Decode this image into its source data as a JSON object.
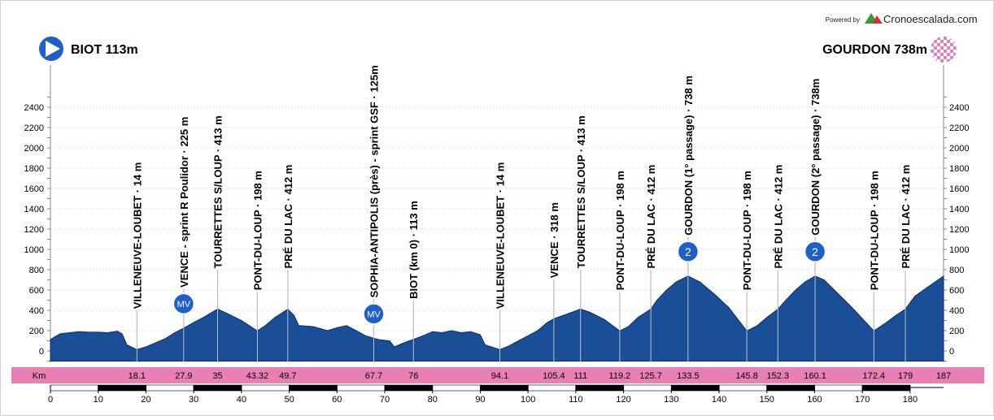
{
  "header": {
    "powered_by": "Powered by",
    "brand": "Cronoescalada.com"
  },
  "start": {
    "label": "BIOT 113m"
  },
  "finish": {
    "label": "GOURDON 738m"
  },
  "km_label": "Km",
  "colors": {
    "profile_fill": "#1a4e96",
    "profile_stroke": "#0c2f66",
    "km_band": "#e87fb5",
    "start_icon": "#1e5fc8",
    "climb_badge": "#1e5fc8"
  },
  "chart_data": {
    "type": "area",
    "xlabel": "Km",
    "ylabel": "",
    "xlim": [
      0,
      187
    ],
    "ylim": [
      -100,
      2500
    ],
    "y_ticks": [
      0,
      200,
      400,
      600,
      800,
      1000,
      1200,
      1400,
      1600,
      1800,
      2000,
      2200,
      2400
    ],
    "x_ticks": [
      0,
      10,
      20,
      30,
      40,
      50,
      60,
      70,
      80,
      90,
      100,
      110,
      120,
      130,
      140,
      150,
      160,
      170,
      180
    ],
    "profile": [
      [
        0,
        113
      ],
      [
        2,
        170
      ],
      [
        4,
        180
      ],
      [
        6,
        190
      ],
      [
        8,
        185
      ],
      [
        10,
        185
      ],
      [
        12,
        180
      ],
      [
        14,
        195
      ],
      [
        15,
        170
      ],
      [
        16,
        60
      ],
      [
        18.1,
        14
      ],
      [
        20,
        40
      ],
      [
        22,
        80
      ],
      [
        24,
        120
      ],
      [
        26,
        180
      ],
      [
        27.9,
        225
      ],
      [
        30,
        280
      ],
      [
        32,
        330
      ],
      [
        35,
        413
      ],
      [
        37,
        370
      ],
      [
        40,
        300
      ],
      [
        43.32,
        198
      ],
      [
        45,
        250
      ],
      [
        47,
        330
      ],
      [
        49.7,
        412
      ],
      [
        51,
        350
      ],
      [
        52,
        250
      ],
      [
        55,
        240
      ],
      [
        58,
        200
      ],
      [
        60,
        230
      ],
      [
        62,
        250
      ],
      [
        64,
        200
      ],
      [
        66,
        150
      ],
      [
        67.7,
        125
      ],
      [
        69,
        110
      ],
      [
        71,
        100
      ],
      [
        72,
        40
      ],
      [
        74,
        80
      ],
      [
        76,
        113
      ],
      [
        78,
        150
      ],
      [
        80,
        190
      ],
      [
        82,
        180
      ],
      [
        84,
        200
      ],
      [
        86,
        180
      ],
      [
        88,
        190
      ],
      [
        90,
        160
      ],
      [
        91,
        60
      ],
      [
        94.1,
        14
      ],
      [
        96,
        50
      ],
      [
        98,
        100
      ],
      [
        100,
        150
      ],
      [
        102,
        200
      ],
      [
        104,
        280
      ],
      [
        105.4,
        318
      ],
      [
        108,
        360
      ],
      [
        111,
        413
      ],
      [
        113,
        380
      ],
      [
        116,
        310
      ],
      [
        119.2,
        198
      ],
      [
        121,
        240
      ],
      [
        123,
        330
      ],
      [
        125.7,
        412
      ],
      [
        127,
        500
      ],
      [
        129,
        600
      ],
      [
        131,
        680
      ],
      [
        133.5,
        738
      ],
      [
        136,
        680
      ],
      [
        139,
        560
      ],
      [
        142,
        430
      ],
      [
        145.8,
        198
      ],
      [
        148,
        250
      ],
      [
        150,
        330
      ],
      [
        152.3,
        412
      ],
      [
        154,
        500
      ],
      [
        156,
        600
      ],
      [
        158,
        680
      ],
      [
        160.1,
        738
      ],
      [
        162,
        700
      ],
      [
        165,
        560
      ],
      [
        168,
        420
      ],
      [
        172.4,
        198
      ],
      [
        175,
        280
      ],
      [
        177,
        350
      ],
      [
        179,
        412
      ],
      [
        181,
        540
      ],
      [
        184,
        640
      ],
      [
        187,
        738
      ]
    ],
    "waypoints": [
      {
        "km": 18.1,
        "elevation": 14,
        "label": "VILLENEUVE-LOUBET · 14 m",
        "km_label": "18.1"
      },
      {
        "km": 27.9,
        "elevation": 225,
        "label": "VENCE - sprint R Poulidor · 225 m",
        "km_label": "27.9",
        "badge": "MV"
      },
      {
        "km": 35,
        "elevation": 413,
        "label": "TOURRETTES S/LOUP · 413 m",
        "km_label": "35"
      },
      {
        "km": 43.32,
        "elevation": 198,
        "label": "PONT-DU-LOUP · 198 m",
        "km_label": "43.32"
      },
      {
        "km": 49.7,
        "elevation": 412,
        "label": "PRÉ DU LAC · 412 m",
        "km_label": "49.7"
      },
      {
        "km": 67.7,
        "elevation": 125,
        "label": "SOPHIA-ANTIPOLIS (près) - sprint GSF · 125m",
        "km_label": "67.7",
        "badge": "MV"
      },
      {
        "km": 76,
        "elevation": 113,
        "label": "BIOT (km 0) · 113 m",
        "km_label": "76"
      },
      {
        "km": 94.1,
        "elevation": 14,
        "label": "VILLENEUVE-LOUBET · 14 m",
        "km_label": "94.1"
      },
      {
        "km": 105.4,
        "elevation": 318,
        "label": "VENCE · 318 m",
        "km_label": "105.4"
      },
      {
        "km": 111,
        "elevation": 413,
        "label": "TOURRETTES S/LOUP · 413 m",
        "km_label": "111"
      },
      {
        "km": 119.2,
        "elevation": 198,
        "label": "PONT-DU-LOUP · 198 m",
        "km_label": "119.2"
      },
      {
        "km": 125.7,
        "elevation": 412,
        "label": "PRÉ DU LAC · 412 m",
        "km_label": "125.7"
      },
      {
        "km": 133.5,
        "elevation": 738,
        "label": "GOURDON (1° passage) · 738 m",
        "km_label": "133.5",
        "badge": "2"
      },
      {
        "km": 145.8,
        "elevation": 198,
        "label": "PONT-DU-LOUP · 198 m",
        "km_label": "145.8"
      },
      {
        "km": 152.3,
        "elevation": 412,
        "label": "PRÉ DU LAC · 412 m",
        "km_label": "152.3"
      },
      {
        "km": 160.1,
        "elevation": 738,
        "label": "GOURDON (2° passage) · 738m",
        "km_label": "160.1",
        "badge": "2"
      },
      {
        "km": 172.4,
        "elevation": 198,
        "label": "PONT-DU-LOUP · 198 m",
        "km_label": "172.4"
      },
      {
        "km": 179,
        "elevation": 412,
        "label": "PRÉ DU LAC · 412 m",
        "km_label": "179"
      },
      {
        "km": 187,
        "elevation": 738,
        "label": "",
        "km_label": "187"
      }
    ]
  }
}
